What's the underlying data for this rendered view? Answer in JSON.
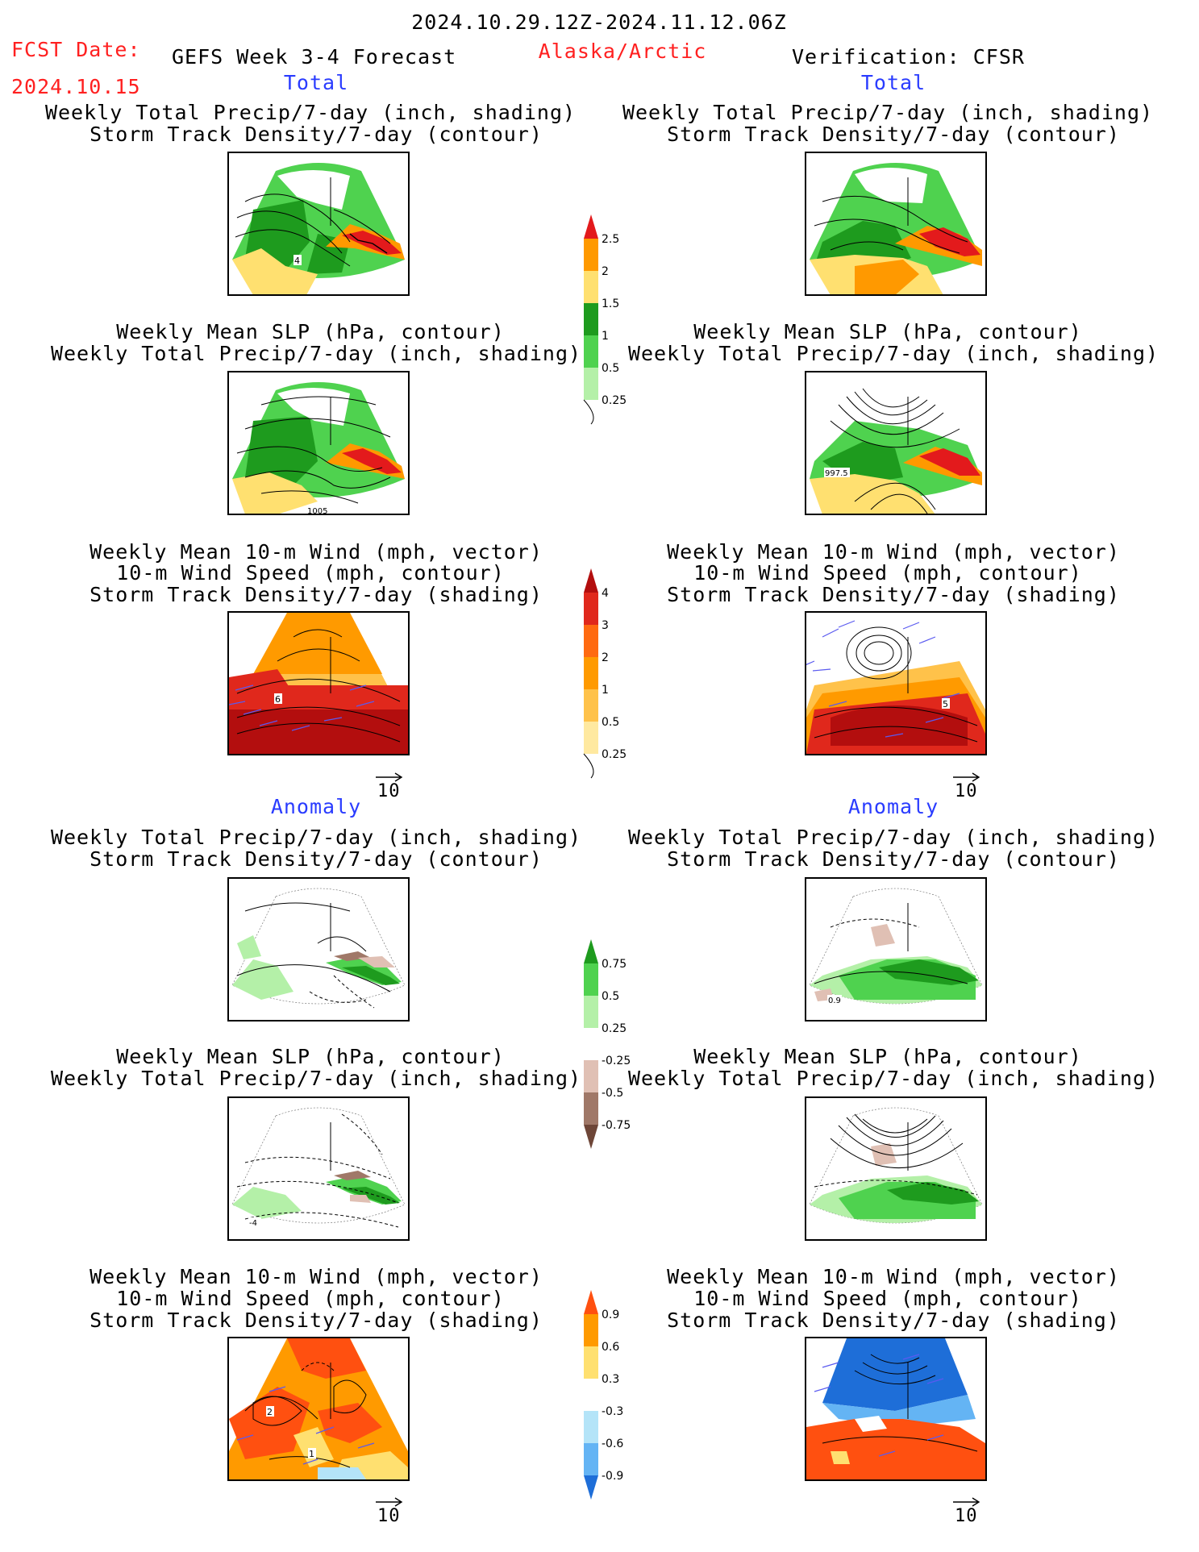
{
  "header": {
    "date_range": "2024.10.29.12Z-2024.11.12.06Z",
    "fcst_label": "FCST Date:",
    "fcst_date": "2024.10.15",
    "forecast_title": "GEFS Week 3-4 Forecast",
    "region": "Alaska/Arctic",
    "verification": "Verification: CFSR"
  },
  "sections": {
    "total_left": "Total",
    "total_right": "Total",
    "anomaly_left": "Anomaly",
    "anomaly_right": "Anomaly"
  },
  "titles": {
    "precip_track": [
      "Weekly Total Precip/7-day (inch, shading)",
      "Storm Track Density/7-day (contour)"
    ],
    "slp_precip": [
      "Weekly Mean SLP (hPa, contour)",
      "Weekly Total Precip/7-day (inch, shading)"
    ],
    "wind_track": [
      "Weekly Mean 10-m Wind (mph, vector)",
      "10-m Wind Speed (mph, contour)",
      "Storm Track Density/7-day (shading)"
    ]
  },
  "vector_reference": "10",
  "contour_labels": {
    "l_total_precip": "4",
    "l_total_slp": "1005",
    "r_total_slp": "997.5",
    "l_total_wind": "6",
    "r_total_wind": "5",
    "r_anom_precip": "0.9",
    "l_anom_slp": "-4",
    "l_anom_wind_a": "2",
    "l_anom_wind_b": "1"
  },
  "colorbars": {
    "precip_total": {
      "labels": [
        "2.5",
        "2",
        "1.5",
        "1",
        "0.5",
        "0.25"
      ],
      "colors": [
        "#e31a1c",
        "#ff9900",
        "#ffe070",
        "#1e9b1e",
        "#4fd24f",
        "#b4f0a8"
      ]
    },
    "track_total": {
      "labels": [
        "4",
        "3",
        "2",
        "1",
        "0.5",
        "0.25"
      ],
      "colors": [
        "#b30e0e",
        "#e0281c",
        "#ff6a10",
        "#ff9a00",
        "#ffc24a",
        "#ffe9a0"
      ]
    },
    "precip_anom": {
      "labels": [
        "0.75",
        "0.5",
        "0.25",
        "-0.25",
        "-0.5",
        "-0.75"
      ],
      "colors": [
        "#1e9b1e",
        "#4fd24f",
        "#b4f0a8",
        "#ffffff",
        "#e0c0b4",
        "#a07868",
        "#6e4638"
      ]
    },
    "track_anom": {
      "labels": [
        "0.9",
        "0.6",
        "0.3",
        "-0.3",
        "-0.6",
        "-0.9"
      ],
      "colors": [
        "#ff5010",
        "#ff9a00",
        "#ffe070",
        "#ffffff",
        "#b4e4f8",
        "#64b4f4",
        "#1e6ed8"
      ]
    }
  },
  "colors": {
    "title_red": "#ff2020",
    "section_blue": "#2a3cff",
    "vector_blue": "#5a5af0"
  }
}
